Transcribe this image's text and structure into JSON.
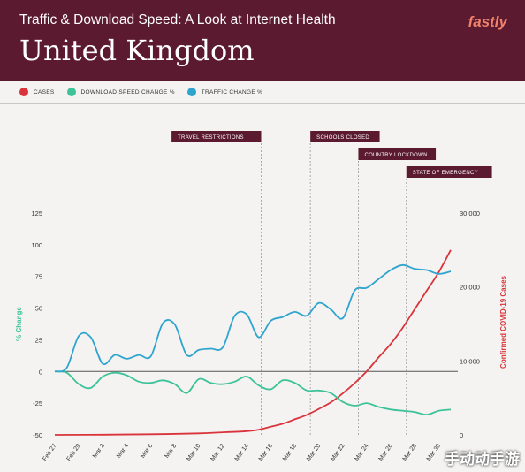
{
  "header": {
    "subtitle": "Traffic & Download Speed: A Look at Internet Health",
    "title": "United Kingdom",
    "brand": "fastly"
  },
  "watermark": "手动动手游",
  "chart_data": {
    "type": "line",
    "title": "United Kingdom",
    "subtitle": "Traffic & Download Speed: A Look at Internet Health",
    "x": [
      "Feb 27",
      "Feb 29",
      "Mar 2",
      "Mar 4",
      "Mar 6",
      "Mar 8",
      "Mar 10",
      "Mar 12",
      "Mar 14",
      "Mar 16",
      "Mar 18",
      "Mar 20",
      "Mar 22",
      "Mar 24",
      "Mar 26",
      "Mar 28",
      "Mar 30"
    ],
    "x_range": [
      "Feb 27",
      "Mar 31"
    ],
    "ylabel": "% Change",
    "ylim": [
      -50,
      125
    ],
    "yticks": [
      -50,
      -25,
      0,
      25,
      50,
      75,
      100,
      125
    ],
    "y2label": "Confirmed COVID-19 Cases",
    "y2lim": [
      0,
      30000
    ],
    "y2ticks": [
      {
        "value": 0,
        "label": "0"
      },
      {
        "value": 10000,
        "label": "10,000"
      },
      {
        "value": 20000,
        "label": "20,000"
      },
      {
        "value": 30000,
        "label": "30,000"
      }
    ],
    "legend_position": "top-left",
    "grid": false,
    "series": [
      {
        "name": "CASES",
        "axis": "right",
        "color": "#d9343b",
        "points": [
          [
            0,
            0
          ],
          [
            4,
            20
          ],
          [
            8,
            80
          ],
          [
            12,
            200
          ],
          [
            14,
            350
          ],
          [
            16,
            500
          ],
          [
            17,
            700
          ],
          [
            18,
            1100
          ],
          [
            19,
            1500
          ],
          [
            20,
            2100
          ],
          [
            21,
            2700
          ],
          [
            22,
            3500
          ],
          [
            23,
            4400
          ],
          [
            24,
            5600
          ],
          [
            25,
            7000
          ],
          [
            26,
            8600
          ],
          [
            27,
            10500
          ],
          [
            28,
            12300
          ],
          [
            29,
            14500
          ],
          [
            30,
            17000
          ],
          [
            31,
            19500
          ],
          [
            32,
            22000
          ],
          [
            33,
            25000
          ]
        ]
      },
      {
        "name": "DOWNLOAD SPEED CHANGE %",
        "axis": "left",
        "color": "#3ec29a",
        "points": [
          [
            0,
            0
          ],
          [
            1,
            -1
          ],
          [
            2,
            -10
          ],
          [
            3,
            -13
          ],
          [
            4,
            -4
          ],
          [
            5,
            -1
          ],
          [
            6,
            -3
          ],
          [
            7,
            -8
          ],
          [
            8,
            -9
          ],
          [
            9,
            -7
          ],
          [
            10,
            -10
          ],
          [
            11,
            -17
          ],
          [
            12,
            -6
          ],
          [
            13,
            -9
          ],
          [
            14,
            -10
          ],
          [
            15,
            -8
          ],
          [
            16,
            -4
          ],
          [
            17,
            -11
          ],
          [
            18,
            -14
          ],
          [
            19,
            -7
          ],
          [
            20,
            -9
          ],
          [
            21,
            -15
          ],
          [
            22,
            -15
          ],
          [
            23,
            -17
          ],
          [
            24,
            -24
          ],
          [
            25,
            -27
          ],
          [
            26,
            -25
          ],
          [
            27,
            -28
          ],
          [
            28,
            -30
          ],
          [
            29,
            -31
          ],
          [
            30,
            -32
          ],
          [
            31,
            -34
          ],
          [
            32,
            -31
          ],
          [
            33,
            -30
          ]
        ]
      },
      {
        "name": "TRAFFIC CHANGE %",
        "axis": "left",
        "color": "#2fa4cf",
        "points": [
          [
            0,
            0
          ],
          [
            1,
            3
          ],
          [
            2,
            28
          ],
          [
            3,
            27
          ],
          [
            4,
            6
          ],
          [
            5,
            13
          ],
          [
            6,
            10
          ],
          [
            7,
            13
          ],
          [
            8,
            12
          ],
          [
            9,
            38
          ],
          [
            10,
            37
          ],
          [
            11,
            13
          ],
          [
            12,
            17
          ],
          [
            13,
            18
          ],
          [
            14,
            19
          ],
          [
            15,
            44
          ],
          [
            16,
            45
          ],
          [
            17,
            27
          ],
          [
            18,
            40
          ],
          [
            19,
            43
          ],
          [
            20,
            47
          ],
          [
            21,
            44
          ],
          [
            22,
            54
          ],
          [
            23,
            49
          ],
          [
            24,
            42
          ],
          [
            25,
            64
          ],
          [
            26,
            66
          ],
          [
            27,
            73
          ],
          [
            28,
            80
          ],
          [
            29,
            84
          ],
          [
            30,
            81
          ],
          [
            31,
            80
          ],
          [
            32,
            77
          ],
          [
            33,
            79
          ]
        ]
      }
    ],
    "annotations": [
      {
        "label": "TRAVEL RESTRICTIONS",
        "x": 17.2
      },
      {
        "label": "SCHOOLS CLOSED",
        "x": 21.3
      },
      {
        "label": "COUNTRY LOCKDOWN",
        "x": 25.3
      },
      {
        "label": "STATE OF EMERGENCY",
        "x": 29.3
      }
    ]
  }
}
